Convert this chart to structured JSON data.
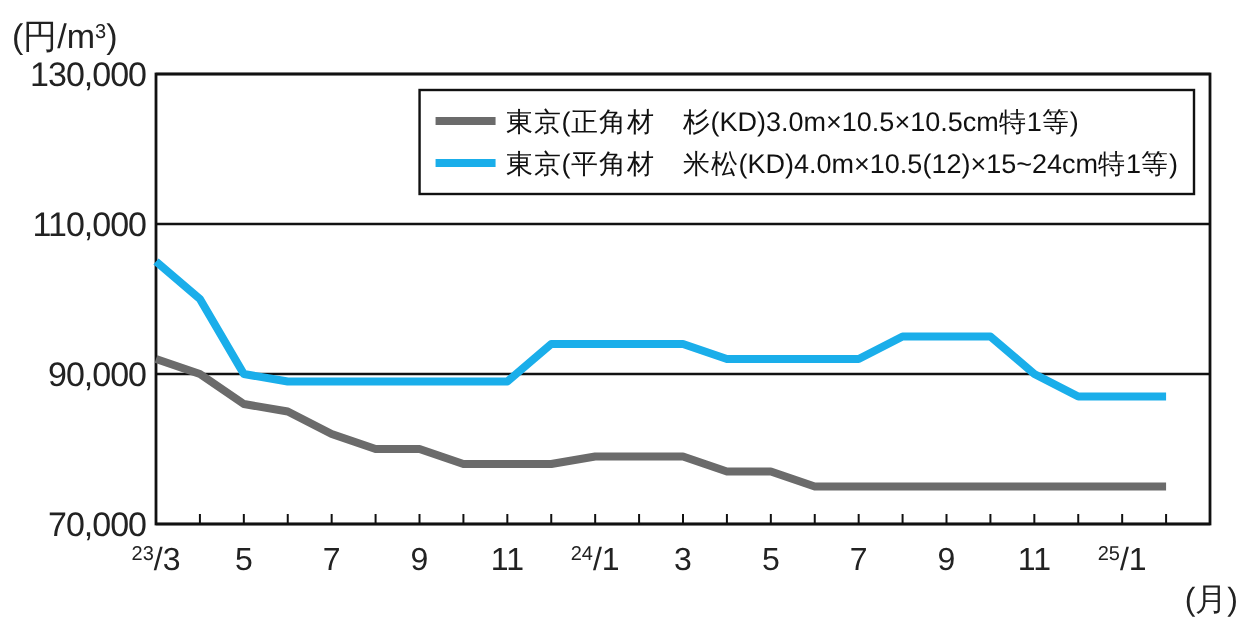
{
  "chart_data": {
    "type": "line",
    "ylabel": "(円/m$^{3}$)",
    "xlabel": "(月)",
    "categories": [
      "$^{23}$/3",
      null,
      "5",
      null,
      "7",
      null,
      "9",
      null,
      "11",
      null,
      "$^{24}$/1",
      null,
      "3",
      null,
      "5",
      null,
      "7",
      null,
      "9",
      null,
      "11",
      null,
      "$^{25}$/1",
      null
    ],
    "series": [
      {
        "name": "東京(正角材　杉(KD)3.0m×10.5×10.5cm特1等)",
        "color": "#6b6b6b",
        "values": [
          92000,
          90000,
          86000,
          85000,
          82000,
          80000,
          80000,
          78000,
          78000,
          78000,
          79000,
          79000,
          79000,
          77000,
          77000,
          75000,
          75000,
          75000,
          75000,
          75000,
          75000,
          75000,
          75000,
          75000
        ]
      },
      {
        "name": "東京(平角材　米松(KD)4.0m×10.5(12)×15~24cm特1等)",
        "color": "#1aaeea",
        "values": [
          105000,
          100000,
          90000,
          89000,
          89000,
          89000,
          89000,
          89000,
          89000,
          94000,
          94000,
          94000,
          94000,
          92000,
          92000,
          92000,
          92000,
          95000,
          95000,
          95000,
          90000,
          87000,
          87000,
          87000
        ]
      }
    ],
    "ylim": [
      70000,
      130000
    ],
    "yticks": [
      {
        "value": 70000,
        "label": "70,000"
      },
      {
        "value": 90000,
        "label": "90,000"
      },
      {
        "value": 110000,
        "label": "110,000"
      },
      {
        "value": 130000,
        "label": "130,000"
      }
    ],
    "grid": "y",
    "legend": "top right",
    "marker": "none",
    "line_style": "solid"
  }
}
